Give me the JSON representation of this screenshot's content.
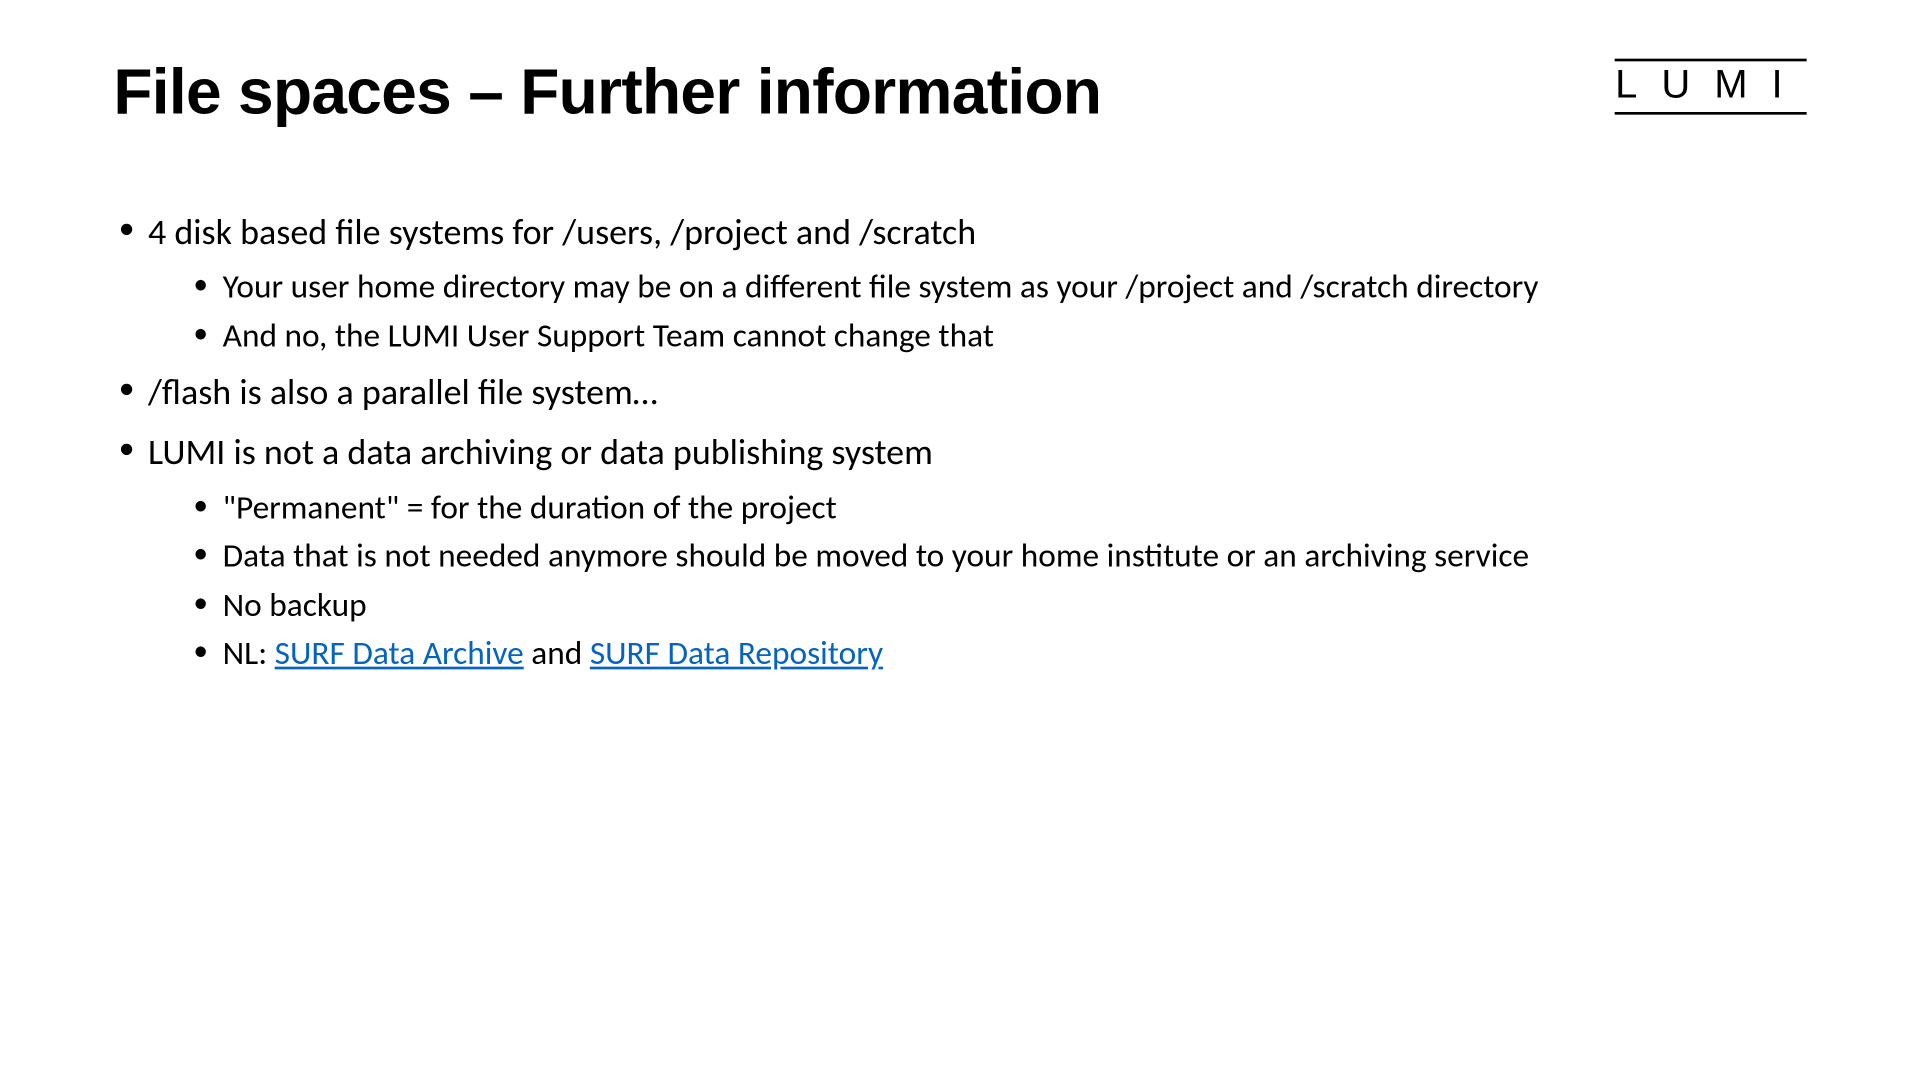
{
  "title": "File spaces – Further information",
  "logo_text": "LUMI",
  "colors": {
    "background": "#ffffff",
    "text": "#000000",
    "link": "#0563c1"
  },
  "bullets": [
    {
      "text": "4 disk based file systems for /users, /project and /scratch",
      "children": [
        {
          "text": "Your user home directory may be on a different file system as your /project and /scratch directory"
        },
        {
          "text": "And no, the LUMI User Support Team cannot change that"
        }
      ]
    },
    {
      "text": "/flash is also a parallel file system…",
      "children": []
    },
    {
      "text": "LUMI is not a data archiving or data publishing system",
      "children": [
        {
          "text": "\"Permanent\" = for the duration of the project"
        },
        {
          "text": "Data that is not needed anymore should be moved to your home institute or an archiving service"
        },
        {
          "text": "No backup"
        },
        {
          "prefix": "NL: ",
          "link1_text": "SURF Data Archive",
          "connector": " and ",
          "link2_text": "SURF Data Repository"
        }
      ]
    }
  ]
}
